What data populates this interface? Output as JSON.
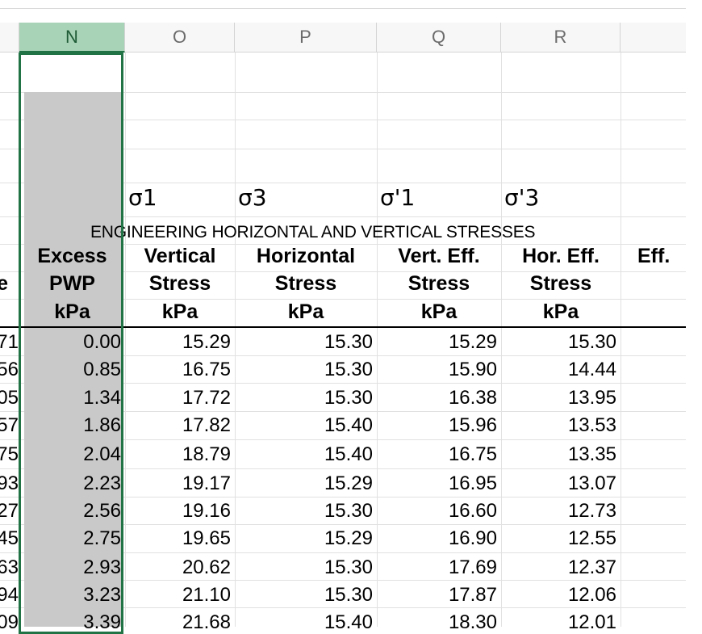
{
  "columns": [
    {
      "letter": "N",
      "selected": true
    },
    {
      "letter": "O",
      "selected": false
    },
    {
      "letter": "P",
      "selected": false
    },
    {
      "letter": "Q",
      "selected": false
    },
    {
      "letter": "R",
      "selected": false
    }
  ],
  "symbols": [
    "σ1",
    "σ3",
    "σ'1",
    "σ'3"
  ],
  "section_title": "ENGINEERING HORIZONTAL AND VERTICAL STRESSES",
  "headers": {
    "n": [
      "Excess",
      "PWP",
      "kPa"
    ],
    "o": [
      "Vertical",
      "Stress",
      "kPa"
    ],
    "p": [
      "Horizontal",
      "Stress",
      "kPa"
    ],
    "q": [
      "Vert. Eff.",
      "Stress",
      "kPa"
    ],
    "r": [
      "Hor. Eff.",
      "Stress",
      "kPa"
    ],
    "s_partial": "Eff.",
    "m_partial": "e"
  },
  "rows": [
    {
      "m": "71",
      "n": "0.00",
      "o": "15.29",
      "p": "15.30",
      "q": "15.29",
      "r": "15.30"
    },
    {
      "m": "56",
      "n": "0.85",
      "o": "16.75",
      "p": "15.30",
      "q": "15.90",
      "r": "14.44"
    },
    {
      "m": "05",
      "n": "1.34",
      "o": "17.72",
      "p": "15.30",
      "q": "16.38",
      "r": "13.95"
    },
    {
      "m": "57",
      "n": "1.86",
      "o": "17.82",
      "p": "15.40",
      "q": "15.96",
      "r": "13.53"
    },
    {
      "m": "75",
      "n": "2.04",
      "o": "18.79",
      "p": "15.40",
      "q": "16.75",
      "r": "13.35"
    },
    {
      "m": "93",
      "n": "2.23",
      "o": "19.17",
      "p": "15.29",
      "q": "16.95",
      "r": "13.07"
    },
    {
      "m": "27",
      "n": "2.56",
      "o": "19.16",
      "p": "15.30",
      "q": "16.60",
      "r": "12.73"
    },
    {
      "m": "45",
      "n": "2.75",
      "o": "19.65",
      "p": "15.29",
      "q": "16.90",
      "r": "12.55"
    },
    {
      "m": "63",
      "n": "2.93",
      "o": "20.62",
      "p": "15.30",
      "q": "17.69",
      "r": "12.37"
    },
    {
      "m": "94",
      "n": "3.23",
      "o": "21.10",
      "p": "15.30",
      "q": "17.87",
      "r": "12.06"
    },
    {
      "m": "09",
      "n": "3.39",
      "o": "21.68",
      "p": "15.40",
      "q": "18.30",
      "r": "12.01"
    }
  ]
}
